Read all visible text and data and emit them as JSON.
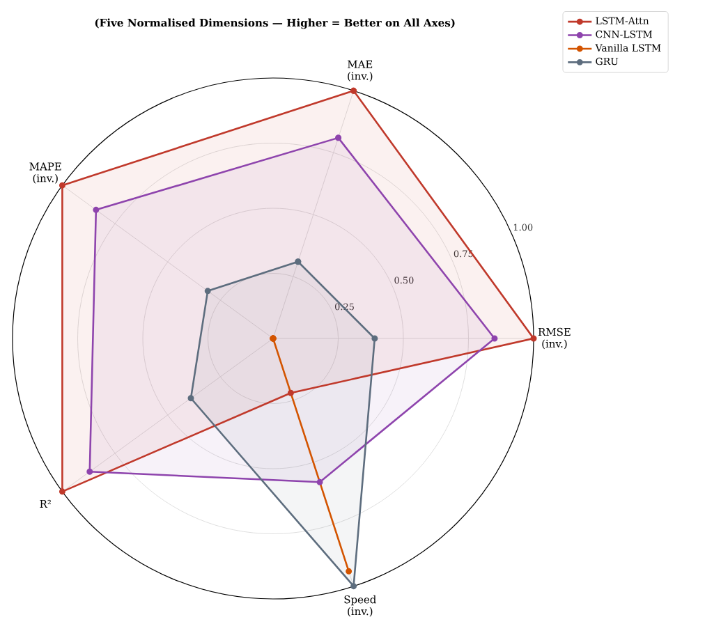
{
  "chart_data": {
    "type": "radar",
    "title": "(Five Normalised Dimensions — Higher = Better on All Axes)",
    "categories": [
      "MAE (inv.)",
      "RMSE (inv.)",
      "Speed (inv.)",
      "R²",
      "MAPE (inv.)"
    ],
    "series": [
      {
        "name": "LSTM-Attn",
        "color": "#c0392b",
        "values": [
          1.0,
          1.0,
          0.22,
          1.0,
          1.0
        ]
      },
      {
        "name": "CNN-LSTM",
        "color": "#8e44ad",
        "values": [
          0.81,
          0.85,
          0.58,
          0.87,
          0.84
        ]
      },
      {
        "name": "Vanilla LSTM",
        "color": "#d35400",
        "values": [
          0.0,
          0.0,
          0.94,
          0.0,
          0.0
        ]
      },
      {
        "name": "GRU",
        "color": "#5d6d7e",
        "values": [
          0.31,
          0.39,
          1.0,
          0.39,
          0.31
        ]
      }
    ],
    "ylim": [
      0,
      1
    ],
    "yticks": [
      {
        "value": 0.25,
        "label": "0.25"
      },
      {
        "value": 0.5,
        "label": "0.50"
      },
      {
        "value": 0.75,
        "label": "0.75"
      },
      {
        "value": 1.0,
        "label": "1.00"
      }
    ],
    "grid": true,
    "legend": "top right",
    "marker": "circle",
    "line_style": "solid"
  }
}
